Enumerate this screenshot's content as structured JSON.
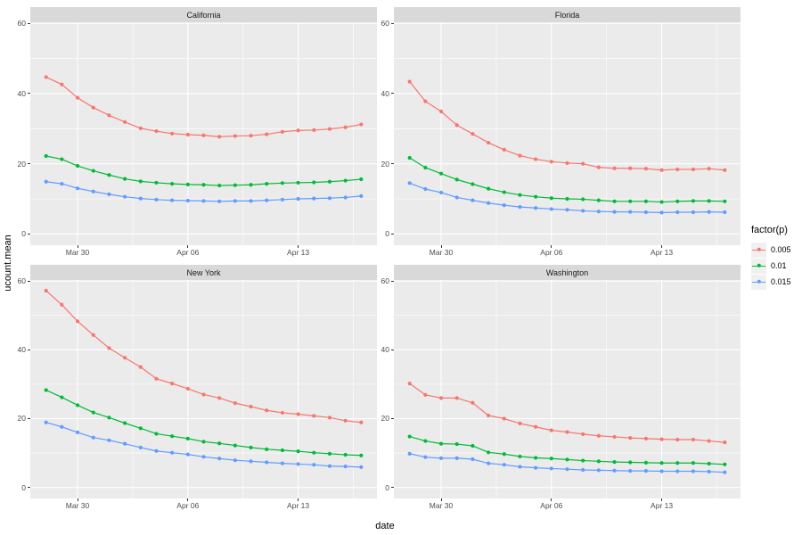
{
  "axes": {
    "y_title": "ucount.mean",
    "x_title": "date",
    "y_ticks": [
      {
        "value": 0,
        "label": "0"
      },
      {
        "value": 20,
        "label": "20"
      },
      {
        "value": 40,
        "label": "40"
      },
      {
        "value": 60,
        "label": "60"
      }
    ],
    "x_ticks": [
      {
        "day": 2,
        "label": "Mar 30"
      },
      {
        "day": 9,
        "label": "Apr 06"
      },
      {
        "day": 16,
        "label": "Apr 13"
      }
    ]
  },
  "legend": {
    "title": "factor(p)",
    "items": [
      {
        "label": "0.005",
        "color": "#F8766D"
      },
      {
        "label": "0.01",
        "color": "#00BA38"
      },
      {
        "label": "0.015",
        "color": "#619CFF"
      }
    ]
  },
  "theme": {
    "panel_bg": "#EBEBEB",
    "strip_bg": "#D9D9D9",
    "grid_major": "#FFFFFF",
    "grid_minor": "#FFFFFF",
    "tick_color": "#333333",
    "axis_text": "#4D4D4D",
    "strip_text": "#1A1A1A",
    "legend_key_bg": "#F0F0F0"
  },
  "chart_data": {
    "type": "line",
    "xlabel": "date",
    "ylabel": "ucount.mean",
    "legend_title": "factor(p)",
    "x_dates": [
      "Mar 28",
      "Mar 29",
      "Mar 30",
      "Mar 31",
      "Apr 01",
      "Apr 02",
      "Apr 03",
      "Apr 04",
      "Apr 05",
      "Apr 06",
      "Apr 07",
      "Apr 08",
      "Apr 09",
      "Apr 10",
      "Apr 11",
      "Apr 12",
      "Apr 13",
      "Apr 14",
      "Apr 15",
      "Apr 16",
      "Apr 17"
    ],
    "x_tick_labels": [
      "Mar 30",
      "Apr 06",
      "Apr 13"
    ],
    "y_tick_values": [
      0,
      20,
      40,
      60
    ],
    "y_minor_values": [
      10,
      30,
      50
    ],
    "ylim": [
      -3.2,
      60.3
    ],
    "xlim_days": [
      -1,
      21
    ],
    "x_minor_days": [
      5.5,
      12.5,
      19.5
    ],
    "x_major_days": [
      2,
      9,
      16
    ],
    "grid": true,
    "legend_position": "right",
    "facets": [
      {
        "title": "California",
        "series": [
          {
            "name": "0.005",
            "color": "#F8766D",
            "values": [
              44.7,
              42.6,
              38.8,
              36.0,
              33.8,
              31.9,
              30.1,
              29.3,
              28.6,
              28.3,
              28.1,
              27.7,
              27.9,
              28.0,
              28.4,
              29.1,
              29.5,
              29.6,
              29.9,
              30.4,
              31.2
            ]
          },
          {
            "name": "0.01",
            "color": "#00BA38",
            "values": [
              22.2,
              21.3,
              19.4,
              18.0,
              16.8,
              15.7,
              15.0,
              14.6,
              14.3,
              14.1,
              14.0,
              13.8,
              13.9,
              14.0,
              14.3,
              14.5,
              14.6,
              14.7,
              14.9,
              15.2,
              15.6
            ]
          },
          {
            "name": "0.015",
            "color": "#619CFF",
            "values": [
              14.9,
              14.3,
              13.0,
              12.1,
              11.3,
              10.6,
              10.1,
              9.8,
              9.6,
              9.5,
              9.4,
              9.3,
              9.4,
              9.4,
              9.6,
              9.8,
              10.0,
              10.1,
              10.2,
              10.4,
              10.8
            ]
          }
        ]
      },
      {
        "title": "Florida",
        "series": [
          {
            "name": "0.005",
            "color": "#F8766D",
            "values": [
              43.4,
              37.8,
              34.9,
              31.0,
              28.5,
              26.0,
              24.0,
              22.3,
              21.3,
              20.6,
              20.2,
              20.0,
              19.0,
              18.7,
              18.7,
              18.6,
              18.2,
              18.4,
              18.4,
              18.6,
              18.2
            ]
          },
          {
            "name": "0.01",
            "color": "#00BA38",
            "values": [
              21.7,
              18.9,
              17.2,
              15.5,
              14.2,
              12.9,
              11.9,
              11.1,
              10.6,
              10.2,
              10.0,
              9.9,
              9.6,
              9.3,
              9.3,
              9.3,
              9.1,
              9.3,
              9.4,
              9.4,
              9.3
            ]
          },
          {
            "name": "0.015",
            "color": "#619CFF",
            "values": [
              14.5,
              12.8,
              11.8,
              10.4,
              9.6,
              8.8,
              8.2,
              7.7,
              7.4,
              7.1,
              6.9,
              6.6,
              6.4,
              6.3,
              6.3,
              6.2,
              6.1,
              6.2,
              6.2,
              6.3,
              6.2
            ]
          }
        ]
      },
      {
        "title": "New York",
        "series": [
          {
            "name": "0.005",
            "color": "#F8766D",
            "values": [
              57.2,
              53.1,
              48.3,
              44.3,
              40.5,
              37.7,
              35.0,
              31.6,
              30.2,
              28.7,
              27.0,
              26.0,
              24.5,
              23.5,
              22.4,
              21.7,
              21.3,
              20.8,
              20.3,
              19.4,
              18.9
            ]
          },
          {
            "name": "0.01",
            "color": "#00BA38",
            "values": [
              28.3,
              26.2,
              23.9,
              21.8,
              20.3,
              18.7,
              17.2,
              15.6,
              14.9,
              14.2,
              13.3,
              12.8,
              12.2,
              11.6,
              11.1,
              10.8,
              10.5,
              10.1,
              9.8,
              9.5,
              9.3
            ]
          },
          {
            "name": "0.015",
            "color": "#619CFF",
            "values": [
              18.9,
              17.6,
              16.0,
              14.5,
              13.7,
              12.7,
              11.6,
              10.6,
              10.1,
              9.6,
              8.9,
              8.4,
              7.9,
              7.6,
              7.3,
              7.0,
              6.8,
              6.6,
              6.2,
              6.1,
              5.9
            ]
          }
        ]
      },
      {
        "title": "Washington",
        "series": [
          {
            "name": "0.005",
            "color": "#F8766D",
            "values": [
              30.2,
              26.9,
              26.0,
              26.0,
              24.6,
              20.9,
              20.0,
              18.6,
              17.6,
              16.6,
              16.1,
              15.5,
              15.0,
              14.7,
              14.4,
              14.2,
              14.0,
              13.9,
              13.9,
              13.5,
              13.1
            ]
          },
          {
            "name": "0.01",
            "color": "#00BA38",
            "values": [
              14.8,
              13.5,
              12.7,
              12.6,
              12.1,
              10.2,
              9.7,
              9.0,
              8.6,
              8.4,
              8.1,
              7.8,
              7.6,
              7.4,
              7.3,
              7.2,
              7.1,
              7.1,
              7.1,
              6.9,
              6.7
            ]
          },
          {
            "name": "0.015",
            "color": "#619CFF",
            "values": [
              9.8,
              8.8,
              8.5,
              8.5,
              8.2,
              7.0,
              6.6,
              6.0,
              5.7,
              5.5,
              5.3,
              5.1,
              5.0,
              4.9,
              4.8,
              4.8,
              4.7,
              4.7,
              4.7,
              4.6,
              4.4
            ]
          }
        ]
      }
    ]
  }
}
